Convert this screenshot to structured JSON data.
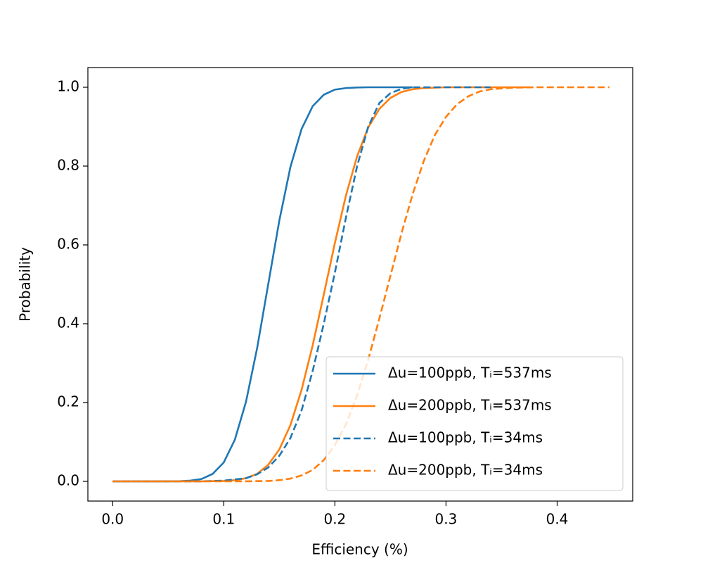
{
  "chart_data": {
    "type": "line",
    "xlabel": "Efficiency (%)",
    "ylabel": "Probability",
    "xlim": [
      -0.0223,
      0.468
    ],
    "ylim": [
      -0.05,
      1.05
    ],
    "xticks": [
      {
        "value": 0,
        "label": "0.0"
      },
      0.1,
      0.2,
      0.3,
      0.4
    ],
    "yticks": [
      {
        "value": 0,
        "label": "0.0"
      },
      0.2,
      0.4,
      0.6,
      0.8,
      {
        "value": 1,
        "label": "1.0"
      }
    ],
    "legend": "lower right",
    "series": [
      {
        "name": "Δu=100ppb, Tᵢ=537ms",
        "color": "#1f77b4",
        "dashed": false,
        "x": [
          0,
          0.05,
          0.06,
          0.07,
          0.08,
          0.09,
          0.1,
          0.11,
          0.12,
          0.13,
          0.14,
          0.15,
          0.16,
          0.17,
          0.18,
          0.19,
          0.2,
          0.21,
          0.22,
          0.23,
          0.25,
          0.27
        ],
        "values": [
          0,
          0.0001,
          0.0004,
          0.002,
          0.006,
          0.019,
          0.048,
          0.106,
          0.202,
          0.338,
          0.5,
          0.662,
          0.798,
          0.894,
          0.952,
          0.981,
          0.994,
          0.998,
          0.9995,
          1,
          1,
          1
        ]
      },
      {
        "name": "Δu=200ppb, Tᵢ=537ms",
        "color": "#ff7f0e",
        "dashed": false,
        "x": [
          0,
          0.04,
          0.08,
          0.1,
          0.11,
          0.12,
          0.13,
          0.14,
          0.15,
          0.16,
          0.17,
          0.18,
          0.19,
          0.2,
          0.21,
          0.22,
          0.23,
          0.24,
          0.25,
          0.26,
          0.27,
          0.28,
          0.3,
          0.34,
          0.375
        ],
        "values": [
          0,
          0,
          0.0001,
          0.001,
          0.003,
          0.008,
          0.019,
          0.042,
          0.081,
          0.143,
          0.232,
          0.345,
          0.474,
          0.605,
          0.726,
          0.825,
          0.898,
          0.945,
          0.973,
          0.988,
          0.995,
          0.998,
          1,
          1,
          1
        ]
      },
      {
        "name": "Δu=100ppb, Tᵢ=34ms",
        "color": "#1f77b4",
        "dashed": true,
        "x": [
          0,
          0.08,
          0.1,
          0.12,
          0.13,
          0.14,
          0.15,
          0.16,
          0.17,
          0.18,
          0.19,
          0.2,
          0.21,
          0.22,
          0.23,
          0.24,
          0.25,
          0.26,
          0.27,
          0.3,
          0.34
        ],
        "values": [
          0,
          0,
          0.002,
          0.008,
          0.018,
          0.035,
          0.065,
          0.11,
          0.18,
          0.28,
          0.4,
          0.53,
          0.67,
          0.8,
          0.9,
          0.96,
          0.985,
          0.996,
          1,
          1,
          1
        ]
      },
      {
        "name": "Δu=200ppb, Tᵢ=34ms",
        "color": "#ff7f0e",
        "dashed": true,
        "x": [
          0,
          0.1,
          0.12,
          0.14,
          0.15,
          0.16,
          0.17,
          0.18,
          0.19,
          0.2,
          0.21,
          0.22,
          0.23,
          0.24,
          0.25,
          0.26,
          0.27,
          0.28,
          0.29,
          0.3,
          0.31,
          0.32,
          0.33,
          0.34,
          0.36,
          0.38,
          0.42,
          0.447
        ],
        "values": [
          0,
          0,
          0.0002,
          0.001,
          0.003,
          0.007,
          0.015,
          0.029,
          0.054,
          0.092,
          0.145,
          0.218,
          0.309,
          0.413,
          0.522,
          0.63,
          0.729,
          0.813,
          0.879,
          0.925,
          0.957,
          0.977,
          0.989,
          0.995,
          0.999,
          1,
          1,
          1
        ]
      }
    ]
  }
}
